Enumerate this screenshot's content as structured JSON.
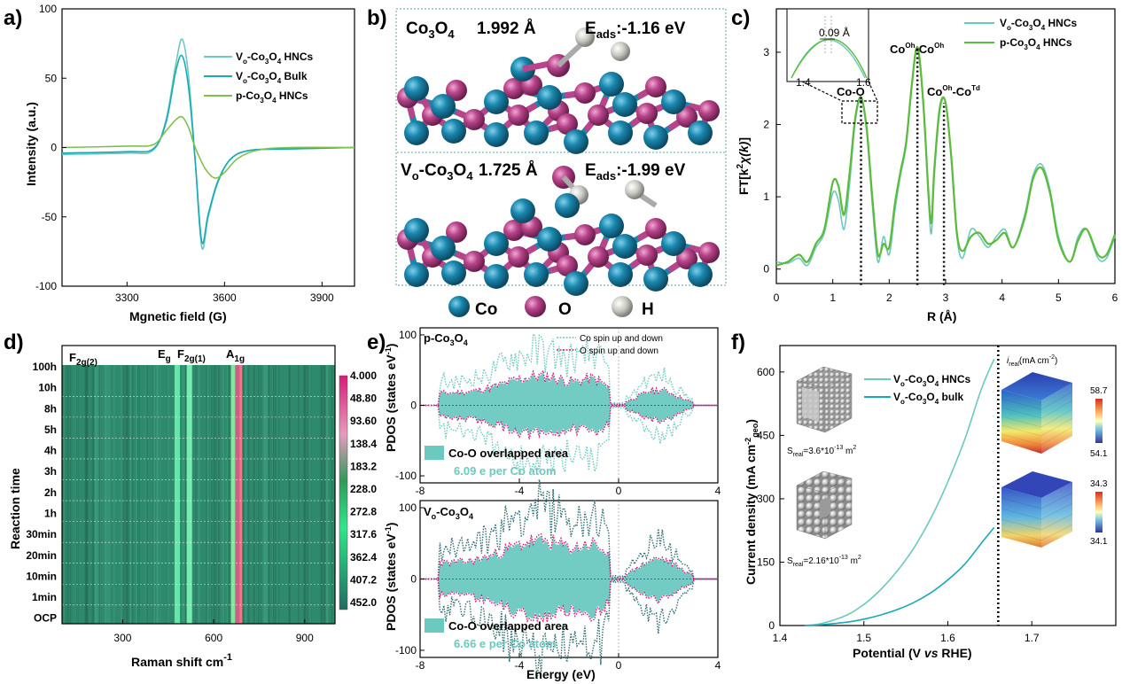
{
  "panels": {
    "a": {
      "label": "a)"
    },
    "b": {
      "label": "b)"
    },
    "c": {
      "label": "c)"
    },
    "d": {
      "label": "d)"
    },
    "e": {
      "label": "e)"
    },
    "f": {
      "label": "f)"
    }
  },
  "colors": {
    "light_teal": "#6cc9c0",
    "teal": "#17aab6",
    "green": "#7cc24a",
    "bright_green": "#5dbb3b",
    "dark_teal": "#2e6d72",
    "magenta": "#d81b7a",
    "co_atom": "#1a86ad",
    "o_atom": "#b8448a",
    "h_atom": "#c8c8c0"
  },
  "chart_data": [
    {
      "id": "a",
      "type": "line",
      "xlabel": "Mgnetic field (G)",
      "ylabel": "Intensity (a.u.)",
      "xlim": [
        3100,
        4000
      ],
      "ylim": [
        -100,
        100
      ],
      "xticks": [
        3300,
        3600,
        3900
      ],
      "yticks": [
        -100,
        -50,
        0,
        50,
        100
      ],
      "grid": false,
      "legend_position": "top-right",
      "series": [
        {
          "name": "Vo-Co3O4 HNCs",
          "color": "#6cc9c0",
          "x": [
            3100,
            3300,
            3380,
            3420,
            3450,
            3470,
            3490,
            3510,
            3530,
            3550,
            3580,
            3620,
            3680,
            3800,
            4000
          ],
          "y": [
            -5,
            -4,
            -2,
            20,
            60,
            78,
            50,
            -10,
            -72,
            -50,
            -25,
            -8,
            -2,
            -1,
            0
          ]
        },
        {
          "name": "Vo-Co3O4 Bulk",
          "color": "#17aab6",
          "x": [
            3100,
            3300,
            3380,
            3420,
            3450,
            3470,
            3490,
            3510,
            3530,
            3550,
            3580,
            3620,
            3680,
            3800,
            4000
          ],
          "y": [
            -4,
            -3,
            -1,
            18,
            55,
            66,
            42,
            -10,
            -68,
            -48,
            -24,
            -8,
            -2,
            -1,
            0
          ]
        },
        {
          "name": "p-Co3O4 HNCs",
          "color": "#7cc24a",
          "x": [
            3100,
            3300,
            3380,
            3420,
            3450,
            3470,
            3490,
            3510,
            3540,
            3570,
            3600,
            3640,
            3700,
            3800,
            4000
          ],
          "y": [
            0,
            1,
            2,
            12,
            20,
            22,
            14,
            0,
            -15,
            -22,
            -18,
            -8,
            -2,
            0,
            0
          ]
        }
      ],
      "legend_labels": [
        {
          "main": "V",
          "sub1": "o",
          "mid": "-Co",
          "sub2": "3",
          "mid2": "O",
          "sub3": "4",
          "tail": " HNCs"
        },
        {
          "main": "V",
          "sub1": "o",
          "mid": "-Co",
          "sub2": "3",
          "mid2": "O",
          "sub3": "4",
          "tail": " Bulk"
        },
        {
          "main": "p-Co",
          "sub1": "3",
          "mid": "O",
          "sub2": "4",
          "mid2": "",
          "sub3": "",
          "tail": " HNCs"
        }
      ]
    },
    {
      "id": "c",
      "type": "line",
      "xlabel": "R (Å)",
      "ylim": [
        -0.2,
        3.6
      ],
      "xlim": [
        0,
        6
      ],
      "xticks": [
        0,
        1,
        2,
        3,
        4,
        5,
        6
      ],
      "yticks": [
        0,
        1,
        2,
        3
      ],
      "legend_position": "top-right",
      "series": [
        {
          "name": "Vo-Co3O4 HNCs",
          "color": "#6cc9c0",
          "x": [
            0,
            0.2,
            0.4,
            0.55,
            0.7,
            0.85,
            1.0,
            1.1,
            1.2,
            1.3,
            1.4,
            1.5,
            1.6,
            1.7,
            1.8,
            1.9,
            2.0,
            2.1,
            2.2,
            2.3,
            2.4,
            2.5,
            2.6,
            2.7,
            2.75,
            2.8,
            2.9,
            3.0,
            3.1,
            3.2,
            3.3,
            3.45,
            3.6,
            3.75,
            3.9,
            4.05,
            4.2,
            4.4,
            4.55,
            4.7,
            4.85,
            5.0,
            5.2,
            5.35,
            5.5,
            5.7,
            5.85,
            6.0
          ],
          "y": [
            0.1,
            0.08,
            0.15,
            0.05,
            0.3,
            0.5,
            1.05,
            0.95,
            0.55,
            1.2,
            2.05,
            2.35,
            1.9,
            0.9,
            0.1,
            0.45,
            0.2,
            0.8,
            1.3,
            1.7,
            2.5,
            3.05,
            2.3,
            0.9,
            0.5,
            1.3,
            2.2,
            2.3,
            1.5,
            0.45,
            0.15,
            0.55,
            0.45,
            0.3,
            0.45,
            0.55,
            0.3,
            0.75,
            1.3,
            1.45,
            1.1,
            0.45,
            0.1,
            0.45,
            0.55,
            0.15,
            0.15,
            0.45
          ]
        },
        {
          "name": "p-Co3O4 HNCs",
          "color": "#5dbb3b",
          "x": [
            0,
            0.2,
            0.4,
            0.55,
            0.7,
            0.85,
            1.0,
            1.1,
            1.2,
            1.3,
            1.4,
            1.5,
            1.6,
            1.7,
            1.8,
            1.9,
            2.0,
            2.1,
            2.2,
            2.3,
            2.4,
            2.5,
            2.6,
            2.7,
            2.75,
            2.8,
            2.9,
            3.0,
            3.1,
            3.2,
            3.3,
            3.45,
            3.6,
            3.75,
            3.9,
            4.05,
            4.2,
            4.4,
            4.55,
            4.7,
            4.85,
            5.0,
            5.2,
            5.35,
            5.5,
            5.7,
            5.85,
            6.0
          ],
          "y": [
            0.05,
            0.1,
            0.2,
            0.1,
            0.35,
            0.55,
            1.2,
            1.15,
            0.75,
            1.35,
            2.1,
            2.38,
            1.95,
            1.0,
            0.2,
            0.35,
            0.3,
            0.9,
            1.35,
            1.75,
            2.55,
            3.07,
            2.35,
            1.0,
            0.65,
            1.4,
            2.25,
            2.3,
            1.55,
            0.5,
            0.25,
            0.45,
            0.5,
            0.35,
            0.4,
            0.5,
            0.3,
            0.7,
            1.25,
            1.4,
            1.05,
            0.4,
            0.1,
            0.4,
            0.55,
            0.2,
            0.2,
            0.48
          ]
        }
      ],
      "peak_lines": [
        1.5,
        2.5,
        2.97
      ],
      "annotations": {
        "co_o": "Co-O",
        "co_oh_co_oh": "Co",
        "co_oh_co_td": "Co",
        "inset_val": "0.09 Å",
        "inset_left": "1.4",
        "inset_right": "1.6"
      },
      "legend_labels": [
        {
          "main": "V",
          "sub1": "o",
          "mid": "-Co",
          "sub2": "3",
          "mid2": "O",
          "sub3": "4",
          "tail": " HNCs"
        },
        {
          "main": "p-Co",
          "sub1": "3",
          "mid": "O",
          "sub2": "4",
          "mid2": "",
          "sub3": "",
          "tail": " HNCs"
        }
      ]
    },
    {
      "id": "d",
      "type": "heatmap",
      "xlabel": "Raman shift  cm",
      "xlabel_sup": "-1",
      "ylabel": "Reaction time",
      "xlim": [
        100,
        1000
      ],
      "xticks": [
        300,
        600,
        900
      ],
      "rows": [
        "100h",
        "10h",
        "8h",
        "5h",
        "4h",
        "3h",
        "2h",
        "1h",
        "30min",
        "20min",
        "10min",
        "1min",
        "OCP"
      ],
      "bands": [
        {
          "x": 480,
          "name": "Eg"
        },
        {
          "x": 520,
          "name": "F2g(1)"
        },
        {
          "x": 680,
          "name": "A1g"
        },
        {
          "x": 190,
          "name": "F2g(2)"
        }
      ],
      "colorbar": [
        "4.000",
        "48.80",
        "93.60",
        "138.4",
        "183.2",
        "228.0",
        "272.8",
        "317.6",
        "362.4",
        "407.2",
        "452.0"
      ]
    },
    {
      "id": "e",
      "type": "area",
      "xlabel": "Energy (eV)",
      "ylabel": "PDOS (states eV",
      "xlim": [
        -8,
        4
      ],
      "xticks": [
        -8,
        -4,
        0,
        4
      ],
      "ylim": [
        -110,
        110
      ],
      "yticks": [
        -100,
        0,
        100
      ],
      "legend": [
        "Co spin up and down",
        "O spin up and down"
      ],
      "subpanels": [
        {
          "title": "p-Co",
          "overlap_label": "Co-O overlapped area",
          "electrons": "6.09 e per Co atom"
        },
        {
          "title": "V",
          "overlap_label": "Co-O overlapped area",
          "electrons": "6.66 e per Co atom"
        }
      ]
    },
    {
      "id": "f",
      "type": "line",
      "xlabel": "Potential (V vs RHE)",
      "ylabel": "Current density (mA cm",
      "xlim": [
        1.4,
        1.8
      ],
      "ylim": [
        0,
        650
      ],
      "xticks": [
        1.4,
        1.5,
        1.6,
        1.7
      ],
      "yticks": [
        0,
        150,
        300,
        450,
        600
      ],
      "series": [
        {
          "name": "Vo-Co3O4 HNCs",
          "color": "#6cc9c0",
          "x": [
            1.43,
            1.45,
            1.48,
            1.5,
            1.52,
            1.54,
            1.56,
            1.58,
            1.6,
            1.62,
            1.64,
            1.655
          ],
          "y": [
            0,
            5,
            25,
            50,
            85,
            130,
            185,
            255,
            340,
            440,
            560,
            630
          ]
        },
        {
          "name": "Vo-Co3O4 bulk",
          "color": "#17aab6",
          "x": [
            1.43,
            1.45,
            1.48,
            1.5,
            1.52,
            1.54,
            1.56,
            1.58,
            1.6,
            1.62,
            1.64,
            1.655
          ],
          "y": [
            0,
            2,
            8,
            15,
            25,
            38,
            55,
            78,
            108,
            145,
            195,
            232
          ]
        }
      ],
      "vline": 1.66,
      "inset": {
        "sreal1": "S",
        "sreal1_val": "=3.6*10",
        "sreal1_exp": "-13",
        "sreal1_unit": " m",
        "sreal2_val": "=2.16*10",
        "sreal2_exp": "-13",
        "ireal_label": "(mA cm",
        "cb1": [
          "58.7",
          "54.1"
        ],
        "cb2": [
          "34.3",
          "34.1"
        ]
      },
      "legend_labels": [
        {
          "main": "V",
          "sub1": "o",
          "mid": "-Co",
          "sub2": "3",
          "mid2": "O",
          "sub3": "4",
          "tail": " HNCs"
        },
        {
          "main": "V",
          "sub1": "o",
          "mid": "-Co",
          "sub2": "3",
          "mid2": "O",
          "sub3": "4",
          "tail": " bulk"
        }
      ]
    }
  ],
  "panel_b": {
    "top": {
      "formula": "Co",
      "bond": "1.992 Å",
      "eads": "E",
      "eads_val": ":-1.16 eV"
    },
    "bottom": {
      "formula": "V",
      "bond": "1.725 Å",
      "eads": "E",
      "eads_val": ":-1.99 eV"
    },
    "legend": [
      "Co",
      "O",
      "H"
    ]
  }
}
